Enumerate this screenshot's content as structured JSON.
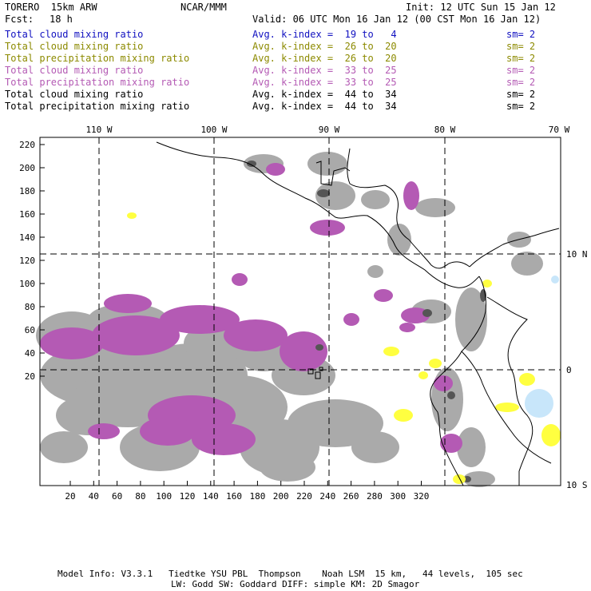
{
  "header": {
    "model": "TORERO  15km ARW",
    "center": "NCAR/MMM",
    "init": "Init: 12 UTC Sun 15 Jan 12",
    "fcst_label": "Fcst:",
    "fcst_value": "18 h",
    "valid": "Valid: 06 UTC Mon 16 Jan 12 (00 CST Mon 16 Jan 12)"
  },
  "legend": [
    {
      "field": "Total cloud mixing ratio",
      "kindex": "Avg. k-index =  19 to   4",
      "sm": "sm= 2",
      "color": "#1010c0"
    },
    {
      "field": "Total cloud mixing ratio",
      "kindex": "Avg. k-index =  26 to  20",
      "sm": "sm= 2",
      "color": "#8c8a00"
    },
    {
      "field": "Total precipitation mixing ratio",
      "kindex": "Avg. k-index =  26 to  20",
      "sm": "sm= 2",
      "color": "#8c8a00"
    },
    {
      "field": "Total cloud mixing ratio",
      "kindex": "Avg. k-index =  33 to  25",
      "sm": "sm= 2",
      "color": "#b45ab4"
    },
    {
      "field": "Total precipitation mixing ratio",
      "kindex": "Avg. k-index =  33 to  25",
      "sm": "sm= 2",
      "color": "#b45ab4"
    },
    {
      "field": "Total cloud mixing ratio",
      "kindex": "Avg. k-index =  44 to  34",
      "sm": "sm= 2",
      "color": "#000000"
    },
    {
      "field": "Total precipitation mixing ratio",
      "kindex": "Avg. k-index =  44 to  34",
      "sm": "sm= 2",
      "color": "#000000"
    }
  ],
  "lon_labels": [
    "110 W",
    "100 W",
    "90 W",
    "80 W",
    "70 W"
  ],
  "lat_labels": [
    "10 N",
    "0",
    "10 S"
  ],
  "y_ticks": [
    "220",
    "200",
    "180",
    "160",
    "140",
    "120",
    "100",
    "80",
    "60",
    "40",
    "20"
  ],
  "x_ticks": [
    "20",
    "40",
    "60",
    "80",
    "100",
    "120",
    "140",
    "160",
    "180",
    "200",
    "220",
    "240",
    "260",
    "280",
    "300",
    "320"
  ],
  "footer": {
    "line1": "Model Info: V3.3.1   Tiedtke YSU PBL  Thompson    Noah LSM  15 km,   44 levels,  105 sec",
    "line2": "LW: Godd SW: Goddard DIFF: simple KM: 2D Smagor"
  },
  "colors": {
    "cloud_gray": "#aaaaaa",
    "dark_gray": "#555555",
    "purple": "#b45ab4",
    "yellow": "#ffff40",
    "light_blue": "#c8e6fa"
  }
}
